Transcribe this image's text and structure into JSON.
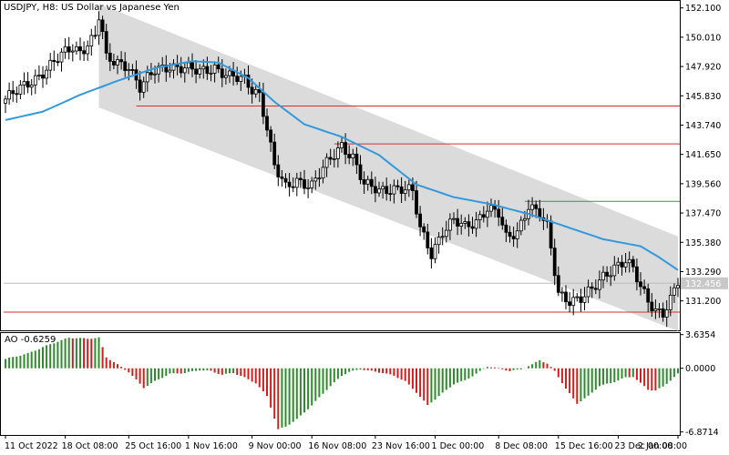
{
  "chart_data": {
    "type": "candlestick",
    "title": "USDJPY, H8:  US Dollar vs Japanese Yen",
    "symbol": "USDJPY",
    "timeframe": "H8",
    "description": "US Dollar vs Japanese Yen",
    "price_axis": {
      "ticks": [
        "152.100",
        "150.010",
        "147.920",
        "145.830",
        "143.740",
        "141.650",
        "139.560",
        "137.470",
        "135.380",
        "133.290",
        "131.200"
      ],
      "ylim": [
        129.1,
        152.6
      ]
    },
    "current_price": {
      "label": "132.456",
      "value": 132.456
    },
    "time_axis": {
      "ticks": [
        "11 Oct 2022",
        "18 Oct 08:00",
        "25 Oct 16:00",
        "1 Nov 16:00",
        "9 Nov 00:00",
        "16 Nov 08:00",
        "23 Nov 16:00",
        "1 Dec 00:00",
        "8 Dec 08:00",
        "15 Dec 16:00",
        "23 Dec 00:00",
        "2 Jan 08:00"
      ]
    },
    "horizontal_levels": [
      {
        "value": 145.1,
        "color": "#d03030"
      },
      {
        "value": 142.4,
        "color": "#d03030"
      },
      {
        "value": 138.3,
        "color": "#30a030"
      },
      {
        "value": 130.4,
        "color": "#d03030"
      }
    ],
    "moving_average_color": "#3399dd",
    "channel_color": "#d7d7d7",
    "close_path": [
      [
        0,
        145.6
      ],
      [
        4,
        146.3
      ],
      [
        8,
        147.1
      ],
      [
        12,
        148.0
      ],
      [
        16,
        148.9
      ],
      [
        18,
        149.3
      ],
      [
        20,
        149.0
      ],
      [
        22,
        149.6
      ],
      [
        24,
        150.1
      ],
      [
        25,
        151.5
      ],
      [
        26,
        150.2
      ],
      [
        27,
        148.4
      ],
      [
        30,
        148.2
      ],
      [
        33,
        148.0
      ],
      [
        36,
        146.4
      ],
      [
        40,
        147.6
      ],
      [
        44,
        148.0
      ],
      [
        48,
        147.8
      ],
      [
        52,
        147.5
      ],
      [
        56,
        147.9
      ],
      [
        60,
        147.2
      ],
      [
        64,
        146.9
      ],
      [
        66,
        146.3
      ],
      [
        68,
        146.0
      ],
      [
        70,
        143.6
      ],
      [
        72,
        140.8
      ],
      [
        75,
        139.2
      ],
      [
        78,
        139.8
      ],
      [
        82,
        139.5
      ],
      [
        85,
        140.6
      ],
      [
        88,
        141.6
      ],
      [
        90,
        142.3
      ],
      [
        93,
        141.5
      ],
      [
        96,
        139.5
      ],
      [
        100,
        139.0
      ],
      [
        104,
        139.3
      ],
      [
        107,
        139.2
      ],
      [
        109,
        138.9
      ],
      [
        111,
        136.3
      ],
      [
        114,
        134.6
      ],
      [
        117,
        136.2
      ],
      [
        120,
        136.9
      ],
      [
        123,
        136.4
      ],
      [
        126,
        136.9
      ],
      [
        129,
        137.9
      ],
      [
        132,
        137.4
      ],
      [
        134,
        135.6
      ],
      [
        137,
        136.1
      ],
      [
        140,
        138.1
      ],
      [
        143,
        137.4
      ],
      [
        145,
        136.4
      ],
      [
        148,
        131.7
      ],
      [
        151,
        131.3
      ],
      [
        154,
        131.4
      ],
      [
        157,
        131.9
      ],
      [
        160,
        132.9
      ],
      [
        163,
        133.7
      ],
      [
        166,
        134.1
      ],
      [
        168,
        133.4
      ],
      [
        170,
        132.1
      ],
      [
        172,
        131.2
      ],
      [
        174,
        130.6
      ],
      [
        176,
        130.4
      ],
      [
        178,
        131.3
      ],
      [
        180,
        132.5
      ]
    ],
    "ma_path": [
      [
        0,
        144.1
      ],
      [
        10,
        144.7
      ],
      [
        20,
        145.9
      ],
      [
        30,
        146.9
      ],
      [
        40,
        147.8
      ],
      [
        50,
        148.3
      ],
      [
        57,
        148.2
      ],
      [
        65,
        147.1
      ],
      [
        72,
        145.4
      ],
      [
        80,
        143.8
      ],
      [
        90,
        142.9
      ],
      [
        100,
        141.6
      ],
      [
        110,
        139.5
      ],
      [
        120,
        138.6
      ],
      [
        130,
        138.1
      ],
      [
        140,
        137.4
      ],
      [
        150,
        136.5
      ],
      [
        160,
        135.6
      ],
      [
        170,
        135.1
      ],
      [
        175,
        134.3
      ],
      [
        180,
        133.4
      ]
    ],
    "oscillator": {
      "name": "AO",
      "value_label": "-0.6259",
      "value": -0.6259,
      "axis_ticks": [
        "3.6354",
        "0.0000",
        "-6.8714"
      ],
      "ylim": [
        -7.2,
        3.9
      ],
      "up_color": "#2e8b2e",
      "down_color": "#cc1f1f",
      "path": [
        [
          0,
          1.0
        ],
        [
          6,
          1.6
        ],
        [
          12,
          2.6
        ],
        [
          17,
          3.3
        ],
        [
          22,
          3.2
        ],
        [
          25,
          3.3
        ],
        [
          27,
          1.2
        ],
        [
          30,
          0.4
        ],
        [
          33,
          -0.4
        ],
        [
          37,
          -2.1
        ],
        [
          40,
          -1.4
        ],
        [
          44,
          -0.6
        ],
        [
          48,
          -0.5
        ],
        [
          52,
          -0.2
        ],
        [
          55,
          -0.3
        ],
        [
          58,
          -0.7
        ],
        [
          61,
          -0.5
        ],
        [
          64,
          -1.0
        ],
        [
          67,
          -1.6
        ],
        [
          70,
          -3.0
        ],
        [
          73,
          -6.6
        ],
        [
          75,
          -6.3
        ],
        [
          78,
          -5.5
        ],
        [
          82,
          -4.0
        ],
        [
          86,
          -2.3
        ],
        [
          90,
          -0.8
        ],
        [
          92,
          -0.4
        ],
        [
          95,
          -0.1
        ],
        [
          98,
          -0.3
        ],
        [
          101,
          -0.5
        ],
        [
          104,
          -0.8
        ],
        [
          107,
          -1.4
        ],
        [
          110,
          -2.6
        ],
        [
          113,
          -4.0
        ],
        [
          116,
          -3.0
        ],
        [
          120,
          -1.7
        ],
        [
          123,
          -1.3
        ],
        [
          126,
          -0.6
        ],
        [
          129,
          0.2
        ],
        [
          132,
          0.0
        ],
        [
          135,
          -0.3
        ],
        [
          138,
          -0.1
        ],
        [
          141,
          0.4
        ],
        [
          143,
          0.9
        ],
        [
          145,
          0.5
        ],
        [
          147,
          -0.3
        ],
        [
          150,
          -2.2
        ],
        [
          153,
          -3.8
        ],
        [
          156,
          -3.0
        ],
        [
          159,
          -1.9
        ],
        [
          162,
          -1.6
        ],
        [
          164,
          -1.3
        ],
        [
          166,
          -1.0
        ],
        [
          168,
          -0.9
        ],
        [
          170,
          -1.6
        ],
        [
          172,
          -2.3
        ],
        [
          174,
          -2.4
        ],
        [
          176,
          -2.0
        ],
        [
          178,
          -1.3
        ],
        [
          180,
          -0.6
        ]
      ]
    },
    "bar_count": 181
  }
}
